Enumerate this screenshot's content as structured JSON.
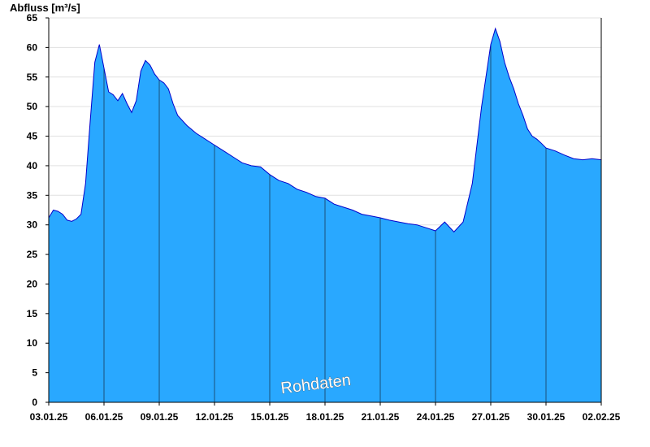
{
  "chart_data": {
    "type": "area",
    "ylabel": "Abfluss [m³/s]",
    "xlabel": "",
    "title": "",
    "watermark": "Rohdaten",
    "ylim": [
      0,
      65
    ],
    "yticks": [
      0,
      5,
      10,
      15,
      20,
      25,
      30,
      35,
      40,
      45,
      50,
      55,
      60,
      65
    ],
    "xlim": [
      "2025-01-03",
      "2025-02-02"
    ],
    "xticks": [
      "03.01.25",
      "06.01.25",
      "09.01.25",
      "12.01.25",
      "15.01.25",
      "18.01.25",
      "21.01.25",
      "24.01.25",
      "27.01.25",
      "30.01.25",
      "02.02.25"
    ],
    "grid": true,
    "colors": {
      "fill": "#29a8ff",
      "line": "#0000cc",
      "grid": "#e0e0e0",
      "daylines": "#1a4f7a"
    },
    "series": [
      {
        "x": [
          "03.01.25 00:00",
          "03.01.25 06:00",
          "03.01.25 12:00",
          "03.01.25 18:00",
          "04.01.25 00:00",
          "04.01.25 06:00",
          "04.01.25 12:00",
          "04.01.25 18:00",
          "05.01.25 00:00",
          "05.01.25 06:00",
          "05.01.25 12:00",
          "05.01.25 18:00",
          "06.01.25 00:00",
          "06.01.25 06:00",
          "06.01.25 12:00",
          "06.01.25 18:00",
          "07.01.25 00:00",
          "07.01.25 06:00",
          "07.01.25 12:00",
          "07.01.25 18:00",
          "08.01.25 00:00",
          "08.01.25 06:00",
          "08.01.25 12:00",
          "08.01.25 18:00",
          "09.01.25 00:00",
          "09.01.25 06:00",
          "09.01.25 12:00",
          "09.01.25 18:00",
          "10.01.25 00:00",
          "10.01.25 12:00",
          "11.01.25 00:00",
          "11.01.25 12:00",
          "12.01.25 00:00",
          "12.01.25 12:00",
          "13.01.25 00:00",
          "13.01.25 12:00",
          "14.01.25 00:00",
          "14.01.25 12:00",
          "15.01.25 00:00",
          "15.01.25 12:00",
          "16.01.25 00:00",
          "16.01.25 12:00",
          "17.01.25 00:00",
          "17.01.25 12:00",
          "18.01.25 00:00",
          "18.01.25 12:00",
          "19.01.25 00:00",
          "19.01.25 12:00",
          "20.01.25 00:00",
          "20.01.25 12:00",
          "21.01.25 00:00",
          "21.01.25 12:00",
          "22.01.25 00:00",
          "22.01.25 12:00",
          "23.01.25 00:00",
          "23.01.25 12:00",
          "24.01.25 00:00",
          "24.01.25 12:00",
          "25.01.25 00:00",
          "25.01.25 12:00",
          "26.01.25 00:00",
          "26.01.25 12:00",
          "27.01.25 00:00",
          "27.01.25 06:00",
          "27.01.25 12:00",
          "27.01.25 18:00",
          "28.01.25 00:00",
          "28.01.25 06:00",
          "28.01.25 12:00",
          "28.01.25 18:00",
          "29.01.25 00:00",
          "29.01.25 06:00",
          "29.01.25 12:00",
          "29.01.25 18:00",
          "30.01.25 00:00",
          "30.01.25 12:00",
          "31.01.25 00:00",
          "31.01.25 12:00",
          "01.02.25 00:00",
          "01.02.25 12:00",
          "02.02.25 00:00"
        ],
        "values": [
          31.2,
          32.5,
          32.3,
          31.8,
          30.8,
          30.6,
          31.0,
          31.8,
          37.0,
          47.5,
          57.5,
          60.5,
          56.5,
          52.5,
          52.0,
          51.0,
          52.2,
          50.5,
          49.0,
          51.0,
          56.0,
          57.8,
          57.0,
          55.5,
          54.5,
          54.0,
          53.0,
          50.5,
          48.5,
          46.8,
          45.5,
          44.5,
          43.5,
          42.5,
          41.5,
          40.5,
          40.0,
          39.8,
          38.5,
          37.5,
          37.0,
          36.0,
          35.5,
          34.8,
          34.5,
          33.5,
          33.0,
          32.5,
          31.8,
          31.5,
          31.2,
          30.8,
          30.5,
          30.2,
          30.0,
          29.5,
          29.0,
          30.5,
          28.8,
          30.5,
          37.0,
          50.0,
          60.5,
          63.2,
          61.0,
          57.5,
          55.0,
          53.0,
          50.5,
          48.5,
          46.2,
          45.0,
          44.5,
          43.8,
          43.0,
          42.5,
          41.8,
          41.2,
          41.0,
          41.2,
          41.0
        ]
      }
    ]
  }
}
